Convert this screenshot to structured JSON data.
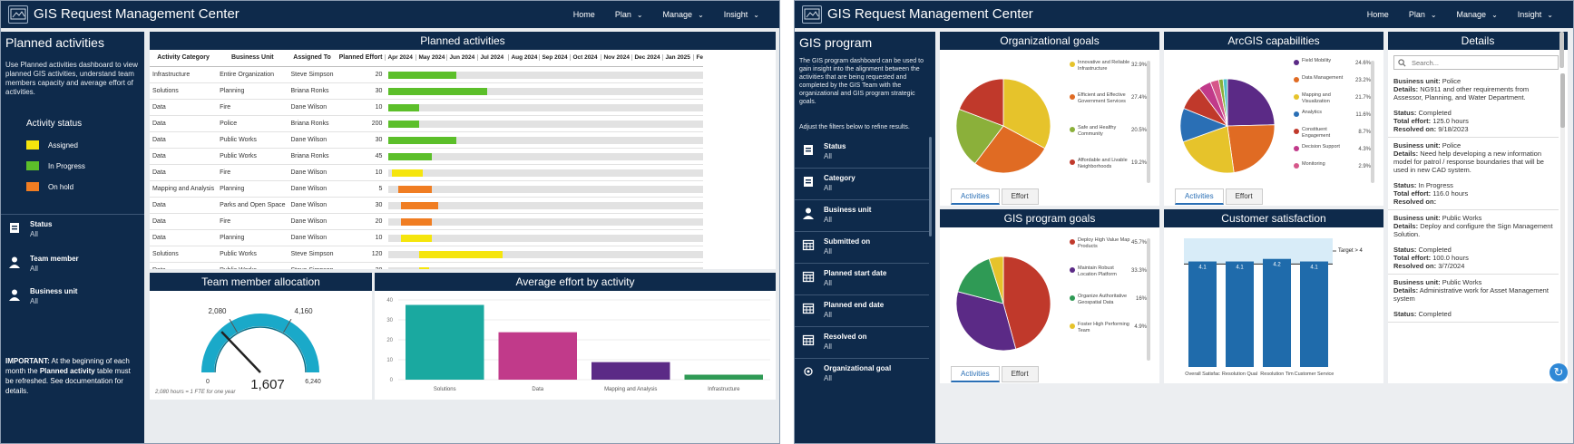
{
  "app": {
    "title": "GIS Request Management Center"
  },
  "nav": [
    {
      "label": "Home",
      "caret": false
    },
    {
      "label": "Plan",
      "caret": true
    },
    {
      "label": "Manage",
      "caret": true
    },
    {
      "label": "Insight",
      "caret": true
    }
  ],
  "left": {
    "sidebar": {
      "title": "Planned activities",
      "description": "Use Planned activities dashboard to view planned GIS activities, understand team members capacity and average effort of activities.",
      "legend_title": "Activity status",
      "legend": [
        {
          "label": "Assigned",
          "color": "#f5e50d"
        },
        {
          "label": "In Progress",
          "color": "#5cbf2a"
        },
        {
          "label": "On hold",
          "color": "#f07d22"
        }
      ],
      "filters": [
        {
          "label": "Status",
          "value": "All",
          "icon": "clipboard-icon"
        },
        {
          "label": "Team member",
          "value": "All",
          "icon": "person-icon"
        },
        {
          "label": "Business unit",
          "value": "All",
          "icon": "person-icon"
        }
      ],
      "important_prefix": "IMPORTANT:",
      "important_mid": " At the beginning of each month the ",
      "important_bold": "Planned activity",
      "important_suffix": " table must be refreshed. See documentation for details."
    },
    "planned": {
      "title": "Planned activities",
      "columns": [
        "Activity Category",
        "Business Unit",
        "Assigned To",
        "Planned Effort"
      ],
      "months": [
        "Apr 2024",
        "May 2024",
        "Jun 2024",
        "Jul 2024",
        "Aug 2024",
        "Sep 2024",
        "Oct 2024",
        "Nov 2024",
        "Dec 2024",
        "Jan 2025",
        "Feb"
      ],
      "rows": [
        {
          "category": "Infrastructure",
          "unit": "Entire Organization",
          "assigned": "Steve Simpson",
          "effort": "20",
          "status": "In Progress",
          "start": 0.0,
          "end": 2.2
        },
        {
          "category": "Solutions",
          "unit": "Planning",
          "assigned": "Briana Ronks",
          "effort": "30",
          "status": "In Progress",
          "start": 0.0,
          "end": 3.2
        },
        {
          "category": "Data",
          "unit": "Fire",
          "assigned": "Dane Wilson",
          "effort": "10",
          "status": "In Progress",
          "start": 0.0,
          "end": 1.0
        },
        {
          "category": "Data",
          "unit": "Police",
          "assigned": "Briana Ronks",
          "effort": "200",
          "status": "In Progress",
          "start": 0.0,
          "end": 1.0
        },
        {
          "category": "Data",
          "unit": "Public Works",
          "assigned": "Dane Wilson",
          "effort": "30",
          "status": "In Progress",
          "start": 0.0,
          "end": 2.2
        },
        {
          "category": "Data",
          "unit": "Public Works",
          "assigned": "Briana Ronks",
          "effort": "45",
          "status": "In Progress",
          "start": 0.0,
          "end": 1.4
        },
        {
          "category": "Data",
          "unit": "Fire",
          "assigned": "Dane Wilson",
          "effort": "10",
          "status": "Assigned",
          "start": 0.1,
          "end": 1.1
        },
        {
          "category": "Mapping and Analysis",
          "unit": "Planning",
          "assigned": "Dane Wilson",
          "effort": "5",
          "status": "On hold",
          "start": 0.3,
          "end": 1.4
        },
        {
          "category": "Data",
          "unit": "Parks and Open Space",
          "assigned": "Dane Wilson",
          "effort": "30",
          "status": "On hold",
          "start": 0.4,
          "end": 1.6
        },
        {
          "category": "Data",
          "unit": "Fire",
          "assigned": "Dane Wilson",
          "effort": "20",
          "status": "On hold",
          "start": 0.4,
          "end": 1.4
        },
        {
          "category": "Data",
          "unit": "Planning",
          "assigned": "Dane Wilson",
          "effort": "10",
          "status": "Assigned",
          "start": 0.4,
          "end": 1.4
        },
        {
          "category": "Solutions",
          "unit": "Public Works",
          "assigned": "Steve Simpson",
          "effort": "120",
          "status": "Assigned",
          "start": 1.0,
          "end": 3.7
        },
        {
          "category": "Data",
          "unit": "Public Works",
          "assigned": "Steve Simpson",
          "effort": "20",
          "status": "Assigned",
          "start": 1.0,
          "end": 1.3
        }
      ]
    },
    "allocation": {
      "title": "Team member allocation",
      "value": 1607,
      "value_label": "1,607",
      "min": 0,
      "max": 6240,
      "min_label": "0",
      "max_label": "6,240",
      "marks": [
        {
          "v": 2080,
          "label": "2,080"
        },
        {
          "v": 4160,
          "label": "4,160"
        }
      ],
      "footnote": "2,080 hours = 1 FTE for one year"
    },
    "effort": {
      "title": "Average effort by activity",
      "chart_data": {
        "type": "bar",
        "categories": [
          "Solutions",
          "Data",
          "Mapping and Analysis",
          "Infrastructure"
        ],
        "values": [
          37.5,
          23.8,
          8.8,
          2.5
        ],
        "colors": [
          "#1aa9a0",
          "#c13a8a",
          "#5b2a86",
          "#2f9a55"
        ],
        "yticks": [
          "0",
          "10",
          "20",
          "30",
          "40"
        ],
        "ylim": [
          0,
          40
        ],
        "title": "Average effort by activity"
      }
    }
  },
  "right": {
    "sidebar": {
      "title": "GIS program",
      "description": "The GIS program dashboard can be used to gain insight into the alignment between the activities that are being requested and completed by the GIS Team with the organizational and GIS program strategic goals.",
      "hint": "Adjust the filters below to refine results.",
      "filters": [
        {
          "label": "Status",
          "value": "All",
          "icon": "clipboard-icon"
        },
        {
          "label": "Category",
          "value": "All",
          "icon": "clipboard-icon"
        },
        {
          "label": "Business unit",
          "value": "All",
          "icon": "person-icon"
        },
        {
          "label": "Submitted on",
          "value": "All",
          "icon": "calendar-icon"
        },
        {
          "label": "Planned start date",
          "value": "All",
          "icon": "calendar-icon"
        },
        {
          "label": "Planned end date",
          "value": "All",
          "icon": "calendar-icon"
        },
        {
          "label": "Resolved on",
          "value": "All",
          "icon": "calendar-icon"
        },
        {
          "label": "Organizational goal",
          "value": "All",
          "icon": "target-icon"
        }
      ]
    },
    "org_goals": {
      "title": "Organizational goals",
      "tabs": [
        "Activities",
        "Effort"
      ],
      "chart_data": {
        "type": "pie",
        "slices": [
          {
            "label": "Innovative and Reliable Infrastructure",
            "pct": "32.9%",
            "value": 32.9,
            "color": "#e6c32b"
          },
          {
            "label": "Efficient and Effective Government Services",
            "pct": "27.4%",
            "value": 27.4,
            "color": "#e06b23"
          },
          {
            "label": "Safe and Healthy Community",
            "pct": "20.5%",
            "value": 20.5,
            "color": "#8bb03a"
          },
          {
            "label": "Affordable and Livable Neighborhoods",
            "pct": "19.2%",
            "value": 19.2,
            "color": "#c0392b"
          }
        ]
      }
    },
    "arcgis": {
      "title": "ArcGIS capabilities",
      "tabs": [
        "Activities",
        "Effort"
      ],
      "chart_data": {
        "type": "pie",
        "slices": [
          {
            "label": "Field Mobility",
            "pct": "24.6%",
            "value": 24.6,
            "color": "#5b2a86"
          },
          {
            "label": "Data Management",
            "pct": "23.2%",
            "value": 23.2,
            "color": "#e06b23"
          },
          {
            "label": "Mapping and Visualization",
            "pct": "21.7%",
            "value": 21.7,
            "color": "#e6c32b"
          },
          {
            "label": "Analytics",
            "pct": "11.6%",
            "value": 11.6,
            "color": "#2a6fb5"
          },
          {
            "label": "Constituent Engagement",
            "pct": "8.7%",
            "value": 8.7,
            "color": "#c0392b"
          },
          {
            "label": "Decision Support",
            "pct": "4.3%",
            "value": 4.3,
            "color": "#c13a8a"
          },
          {
            "label": "Monitoring",
            "pct": "2.9%",
            "value": 2.9,
            "color": "#d6578a"
          },
          {
            "label": "",
            "pct": "",
            "value": 1.5,
            "color": "#8bb03a"
          },
          {
            "label": "",
            "pct": "",
            "value": 1.5,
            "color": "#4fc0c8"
          }
        ]
      }
    },
    "program_goals": {
      "title": "GIS program goals",
      "tabs": [
        "Activities",
        "Effort"
      ],
      "chart_data": {
        "type": "pie",
        "slices": [
          {
            "label": "Deploy High Value Map Products",
            "pct": "45.7%",
            "value": 45.7,
            "color": "#c0392b"
          },
          {
            "label": "Maintain Robust Location Platform",
            "pct": "33.3%",
            "value": 33.3,
            "color": "#5b2a86"
          },
          {
            "label": "Organize Authoritative Geospatial Data",
            "pct": "16%",
            "value": 16.0,
            "color": "#2f9a55"
          },
          {
            "label": "Foster High Performing Team",
            "pct": "4.9%",
            "value": 4.9,
            "color": "#e6c32b"
          }
        ]
      }
    },
    "satisfaction": {
      "title": "Customer satisfaction",
      "target_label": "Target > 4",
      "chart_data": {
        "type": "bar",
        "categories": [
          "Overall Satisfaction",
          "Resolution Quality",
          "Resolution Time",
          "Customer Service"
        ],
        "category_labels": [
          "Overall Satisfac",
          "Resolution Qual",
          "Resolution Tim",
          "Customer Service"
        ],
        "values": [
          4.1,
          4.1,
          4.2,
          4.1
        ],
        "value_labels": [
          "4.1",
          "4.1",
          "4.2",
          "4.1"
        ],
        "ylim": [
          0,
          5
        ],
        "target": 4,
        "color": "#1f6bab"
      }
    },
    "details": {
      "title": "Details",
      "search_placeholder": "Search...",
      "items": [
        {
          "unit": "Police",
          "details": "NG911 and other requirements from Assessor, Planning, and Water Department.",
          "status": "Completed",
          "effort": "125.0 hours",
          "resolved": "9/18/2023"
        },
        {
          "unit": "Police",
          "details": "Need help developing a new information model for patrol / response boundaries that will be used in new CAD system.",
          "status": "In Progress",
          "effort": "116.0 hours",
          "resolved": ""
        },
        {
          "unit": "Public Works",
          "details": "Deploy and configure the Sign Management Solution.",
          "status": "Completed",
          "effort": "100.0 hours",
          "resolved": "3/7/2024"
        },
        {
          "unit": "Public Works",
          "details": "Administrative work for Asset Management system",
          "status": "Completed",
          "effort": "",
          "resolved": ""
        }
      ],
      "labels": {
        "unit": "Business unit:",
        "details": "Details:",
        "status": "Status:",
        "effort": "Total effort:",
        "resolved": "Resolved on:"
      }
    }
  }
}
